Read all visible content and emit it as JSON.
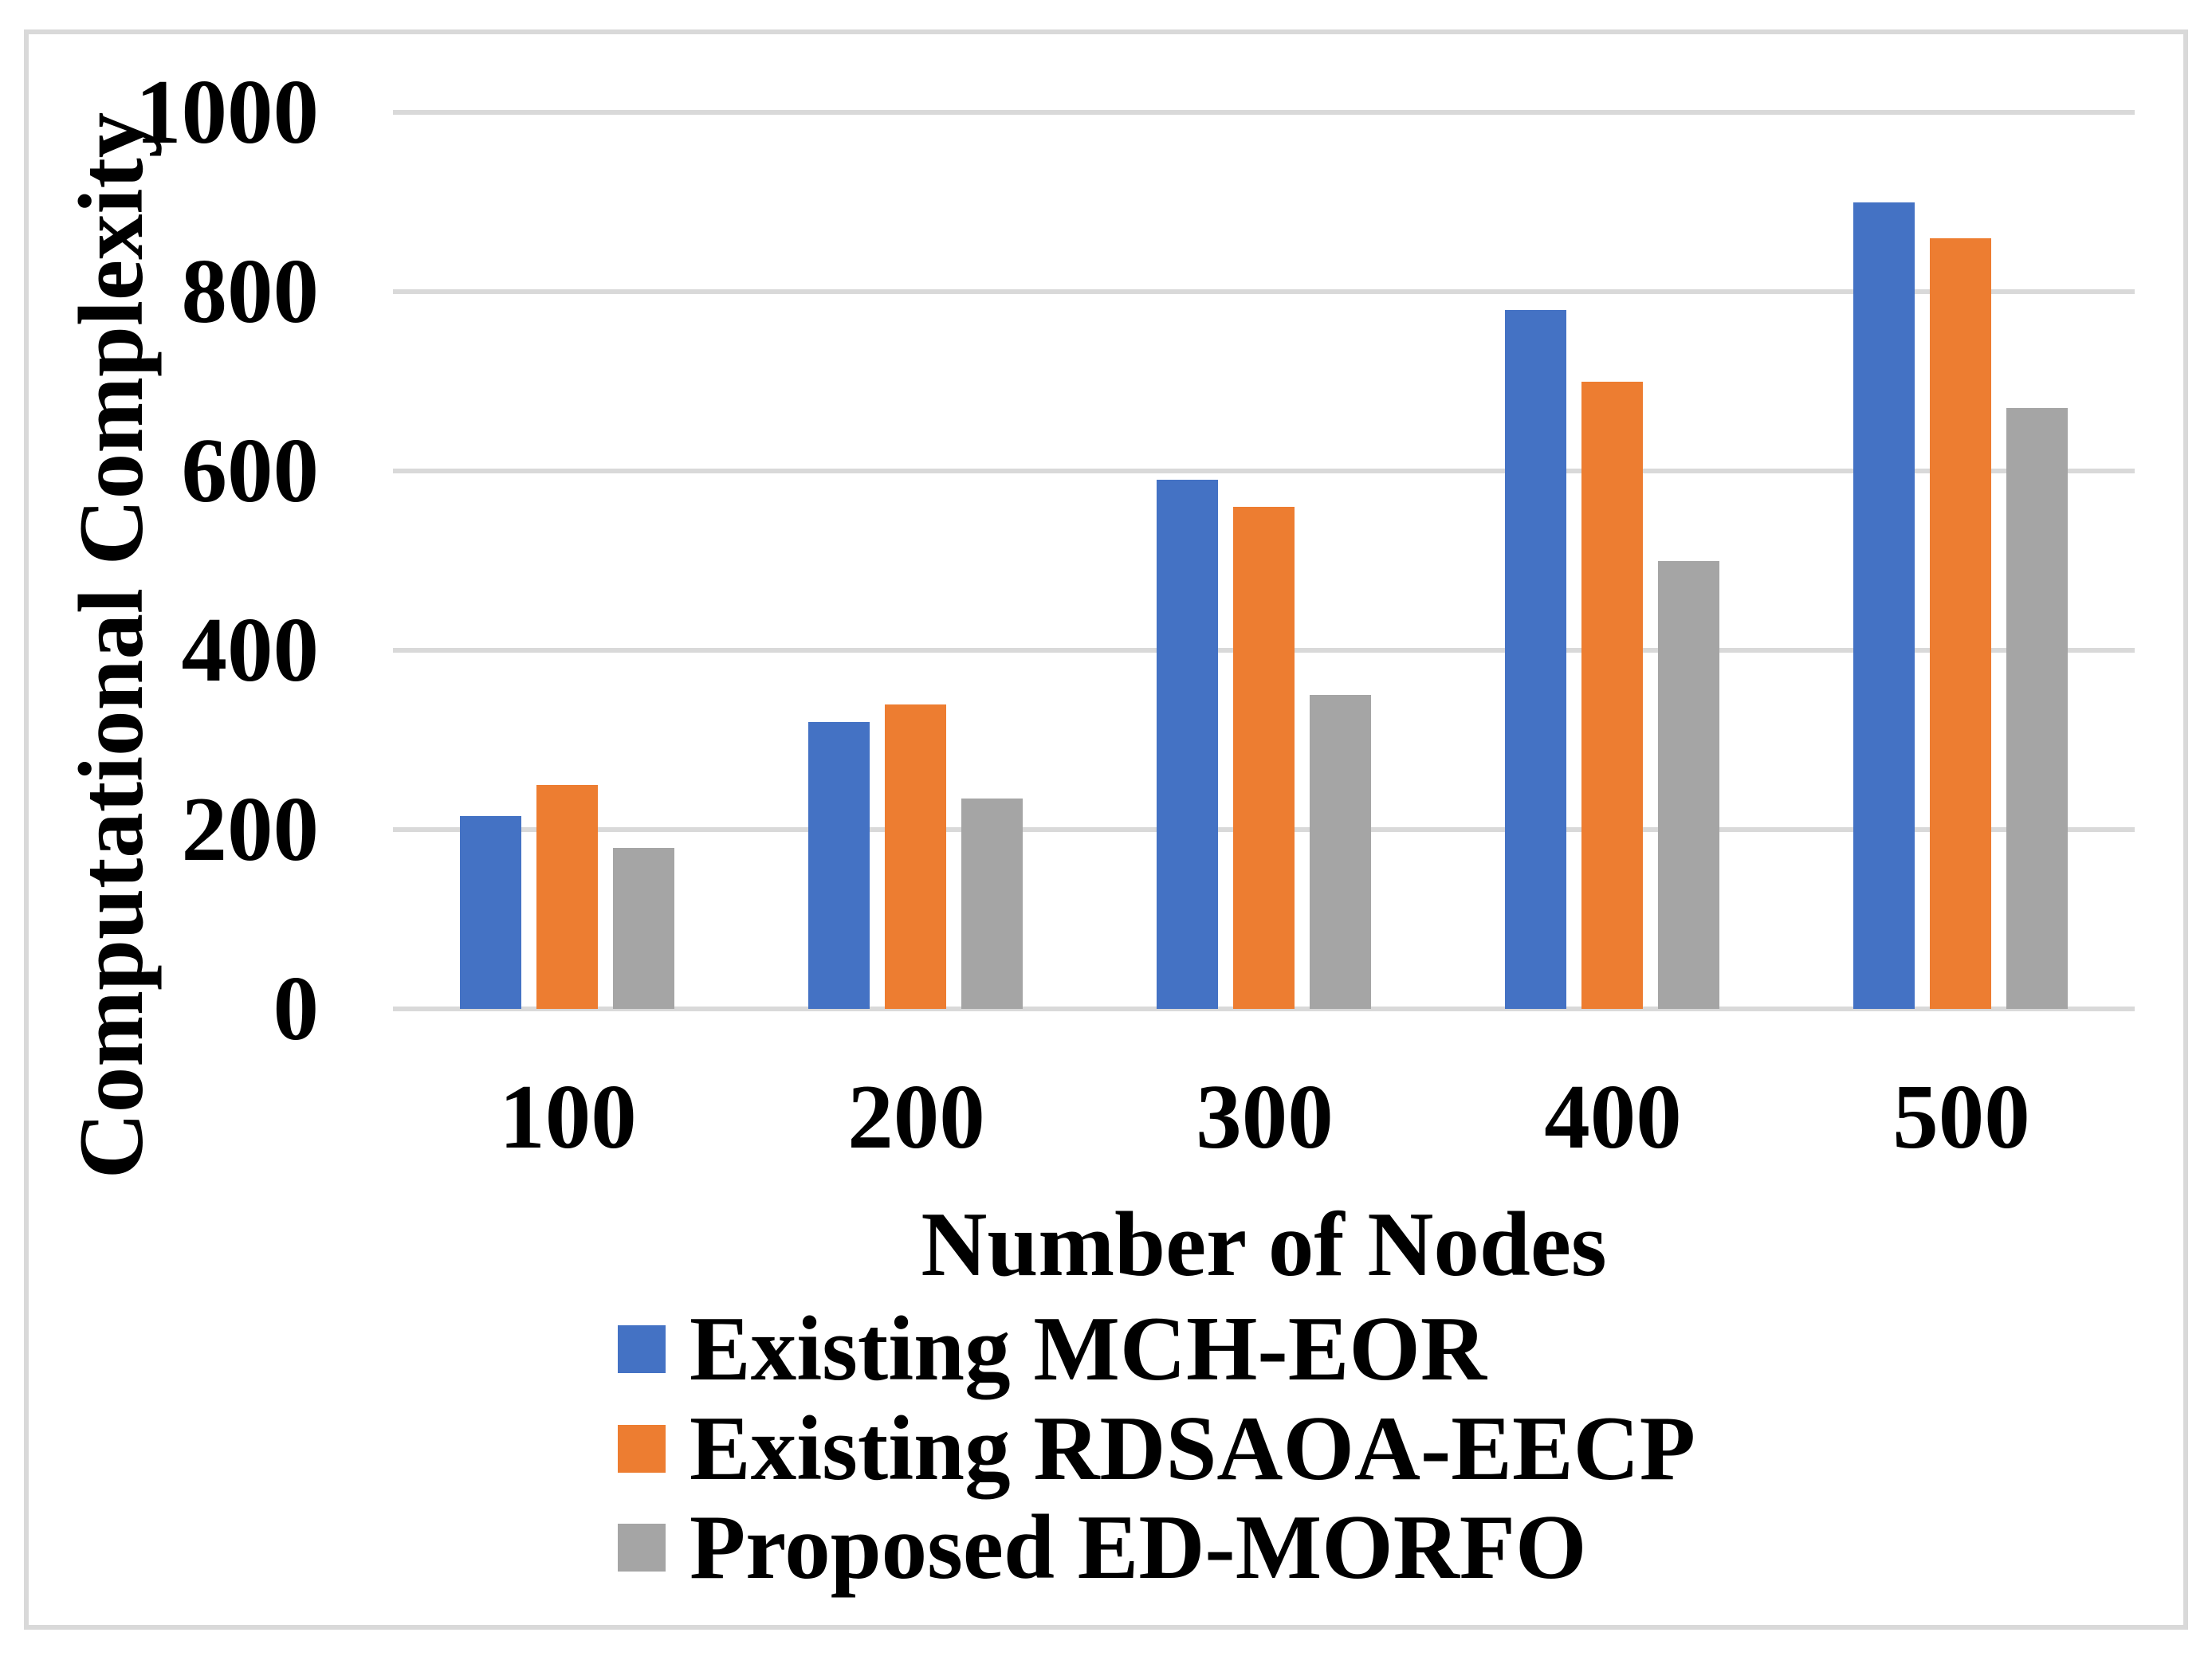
{
  "figure": {
    "background_color": "#ffffff",
    "border_color": "#d9d9d9",
    "gridline_color": "#d9d9d9",
    "text_color": "#000000"
  },
  "chart_data": {
    "type": "bar",
    "title": "",
    "xlabel": "Number of Nodes",
    "ylabel": "Computational Complexity",
    "categories": [
      "100",
      "200",
      "300",
      "400",
      "500"
    ],
    "series": [
      {
        "name": "Existing MCH-EOR",
        "color": "#4472c4",
        "values": [
          215,
          320,
          590,
          780,
          900
        ]
      },
      {
        "name": "Existing RDSAOA-EECP",
        "color": "#ed7d31",
        "values": [
          250,
          340,
          560,
          700,
          860
        ]
      },
      {
        "name": "Proposed ED-MORFO",
        "color": "#a5a5a5",
        "values": [
          180,
          235,
          350,
          500,
          670
        ]
      }
    ],
    "y_ticks": [
      0,
      200,
      400,
      600,
      800,
      1000
    ],
    "ylim": [
      0,
      1000
    ],
    "grid": true,
    "legend_position": "bottom-left"
  }
}
